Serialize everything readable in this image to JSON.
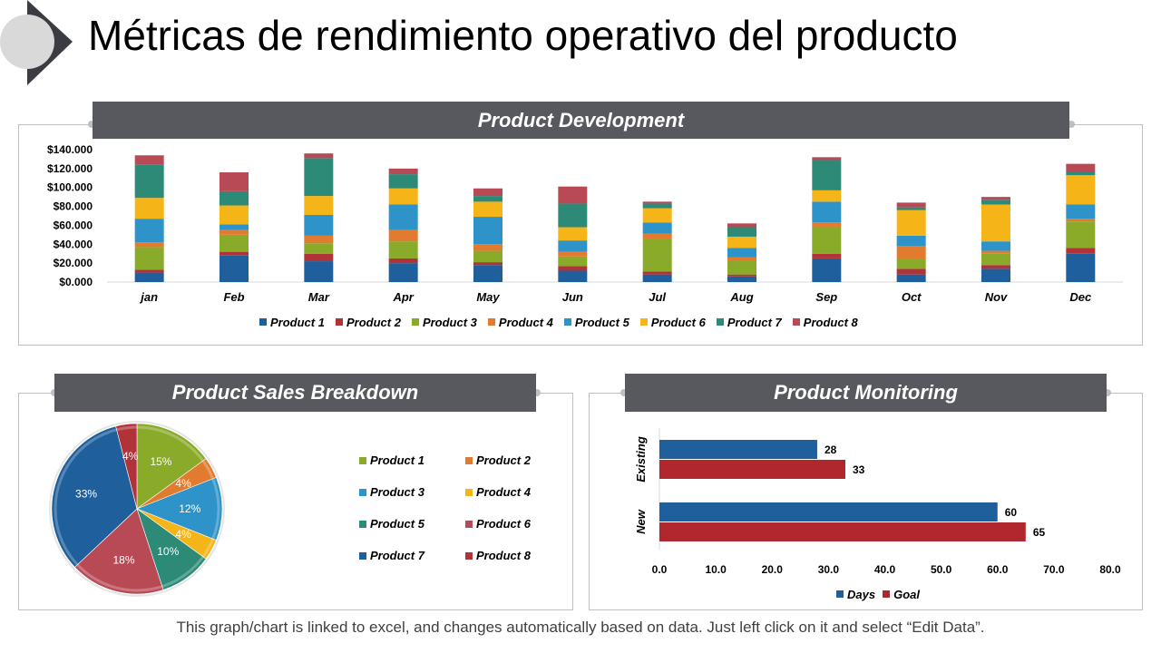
{
  "title": "Métricas de rendimiento operativo del producto",
  "footer": "This graph/chart is linked to excel, and changes automatically based on data. Just left click on it and select “Edit Data”.",
  "colors": {
    "header_bg": "#58585f",
    "panel_border": "#bfbfbf",
    "badge_dark": "#3b3b42",
    "badge_circle": "#d9d9d9"
  },
  "chart_data": [
    {
      "type": "bar",
      "stacked": true,
      "title": "Product Development",
      "categories": [
        "jan",
        "Feb",
        "Mar",
        "Apr",
        "May",
        "Jun",
        "Jul",
        "Aug",
        "Sep",
        "Oct",
        "Nov",
        "Dec"
      ],
      "ylim": [
        0,
        140000
      ],
      "yticks": [
        "$0.000",
        "$20.000",
        "$40.000",
        "$60.000",
        "$80.000",
        "$100.000",
        "$120.000",
        "$140.000"
      ],
      "ytick_values": [
        0,
        20000,
        40000,
        60000,
        80000,
        100000,
        120000,
        140000
      ],
      "grid": false,
      "legend_position": "bottom",
      "series": [
        {
          "name": "Product 1",
          "color": "#1f5f9b",
          "values": [
            10000,
            28000,
            22000,
            20000,
            18000,
            12000,
            8000,
            6000,
            25000,
            8000,
            14000,
            30000
          ]
        },
        {
          "name": "Product 2",
          "color": "#b0333a",
          "values": [
            3000,
            4000,
            8000,
            5000,
            3000,
            5000,
            3000,
            2000,
            5000,
            6000,
            4000,
            6000
          ]
        },
        {
          "name": "Product 3",
          "color": "#8aaa2a",
          "values": [
            24000,
            18000,
            11000,
            18000,
            12000,
            10000,
            35000,
            15000,
            28000,
            10000,
            12000,
            28000
          ]
        },
        {
          "name": "Product 4",
          "color": "#e07b2f",
          "values": [
            5000,
            5000,
            8000,
            12000,
            7000,
            5000,
            5000,
            3000,
            5000,
            14000,
            3000,
            3000
          ]
        },
        {
          "name": "Product 5",
          "color": "#2e93c8",
          "values": [
            25000,
            6000,
            22000,
            27000,
            29000,
            12000,
            12000,
            10000,
            22000,
            11000,
            10000,
            15000
          ]
        },
        {
          "name": "Product 6",
          "color": "#f5b418",
          "values": [
            22000,
            20000,
            20000,
            17000,
            16000,
            14000,
            15000,
            12000,
            12000,
            27000,
            39000,
            31000
          ]
        },
        {
          "name": "Product 7",
          "color": "#2c8a77",
          "values": [
            35000,
            15000,
            40000,
            15000,
            6000,
            25000,
            5000,
            10000,
            32000,
            3000,
            5000,
            4000
          ]
        },
        {
          "name": "Product 8",
          "color": "#b84a55",
          "values": [
            10000,
            20000,
            5000,
            6000,
            8000,
            18000,
            2000,
            4000,
            3000,
            5000,
            3000,
            8000
          ]
        }
      ]
    },
    {
      "type": "pie",
      "title": "Product Sales Breakdown",
      "slices": [
        {
          "name": "Product 1",
          "value": 15,
          "label": "15%",
          "color": "#8aaa2a"
        },
        {
          "name": "Product 2",
          "value": 4,
          "label": "4%",
          "color": "#e07b2f"
        },
        {
          "name": "Product 3",
          "value": 12,
          "label": "12%",
          "color": "#2e93c8"
        },
        {
          "name": "Product 4",
          "value": 4,
          "label": "4%",
          "color": "#f5b418"
        },
        {
          "name": "Product 5",
          "value": 10,
          "label": "10%",
          "color": "#2c8a77"
        },
        {
          "name": "Product 6",
          "value": 18,
          "label": "18%",
          "color": "#b84a55"
        },
        {
          "name": "Product 7",
          "value": 33,
          "label": "33%",
          "color": "#1f5f9b"
        },
        {
          "name": "Product 8",
          "value": 4,
          "label": "4%",
          "color": "#b0333a"
        }
      ],
      "legend_position": "right"
    },
    {
      "type": "bar",
      "orientation": "horizontal",
      "title": "Product Monitoring",
      "categories": [
        "Existing",
        "New"
      ],
      "xlim": [
        0,
        80
      ],
      "xticks": [
        "0.0",
        "10.0",
        "20.0",
        "30.0",
        "40.0",
        "50.0",
        "60.0",
        "70.0",
        "80.0"
      ],
      "xtick_values": [
        0,
        10,
        20,
        30,
        40,
        50,
        60,
        70,
        80
      ],
      "legend_position": "bottom",
      "series": [
        {
          "name": "Days",
          "color": "#1f5f9b",
          "values": [
            28,
            60
          ],
          "labels": [
            "28",
            "60"
          ]
        },
        {
          "name": "Goal",
          "color": "#b0282e",
          "values": [
            33,
            65
          ],
          "labels": [
            "33",
            "65"
          ]
        }
      ]
    }
  ]
}
